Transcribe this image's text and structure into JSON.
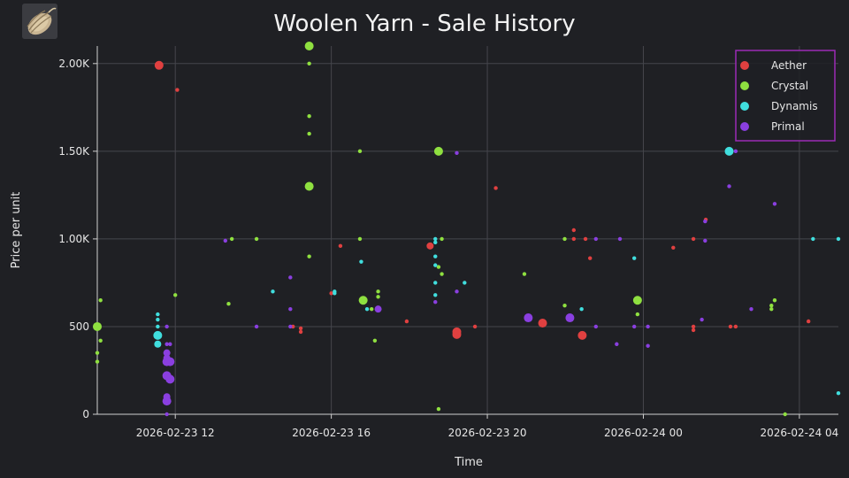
{
  "item": {
    "icon": "yarn-ball-icon"
  },
  "chart_data": {
    "type": "scatter",
    "title": "Woolen Yarn - Sale History",
    "xlabel": "Time",
    "ylabel": "Price per unit",
    "x_type": "datetime",
    "xlim": [
      "2026-02-23 10:00",
      "2026-02-24 05:00"
    ],
    "ylim": [
      0,
      2100
    ],
    "x_ticks": [
      {
        "value": "2026-02-23 12:00",
        "label": "2026-02-23 12"
      },
      {
        "value": "2026-02-23 16:00",
        "label": "2026-02-23 16"
      },
      {
        "value": "2026-02-23 20:00",
        "label": "2026-02-23 20"
      },
      {
        "value": "2026-02-24 00:00",
        "label": "2026-02-24 00"
      },
      {
        "value": "2026-02-24 04:00",
        "label": "2026-02-24 04"
      }
    ],
    "y_ticks": [
      {
        "value": 0,
        "label": "0"
      },
      {
        "value": 500,
        "label": "500"
      },
      {
        "value": 1000,
        "label": "1.00K"
      },
      {
        "value": 1500,
        "label": "1.50K"
      },
      {
        "value": 2000,
        "label": "2.00K"
      }
    ],
    "grid": true,
    "legend_position": "top-right",
    "legend_border_color": "#9b2bb5",
    "background": "#1f2024",
    "marker_size_encodes": "quantity (larger marker = larger sale)",
    "series": [
      {
        "name": "Aether",
        "color": "#e04040",
        "points": [
          {
            "x": "2026-02-23 11:35",
            "y": 1990,
            "size": "l"
          },
          {
            "x": "2026-02-23 12:03",
            "y": 1850,
            "size": "s"
          },
          {
            "x": "2026-02-23 15:01",
            "y": 500,
            "size": "s"
          },
          {
            "x": "2026-02-23 15:13",
            "y": 490,
            "size": "s"
          },
          {
            "x": "2026-02-23 15:13",
            "y": 470,
            "size": "s"
          },
          {
            "x": "2026-02-23 16:00",
            "y": 690,
            "size": "s"
          },
          {
            "x": "2026-02-23 16:14",
            "y": 960,
            "size": "s"
          },
          {
            "x": "2026-02-23 17:56",
            "y": 530,
            "size": "s"
          },
          {
            "x": "2026-02-23 18:32",
            "y": 960,
            "size": "m"
          },
          {
            "x": "2026-02-23 19:13",
            "y": 470,
            "size": "l"
          },
          {
            "x": "2026-02-23 19:13",
            "y": 455,
            "size": "l"
          },
          {
            "x": "2026-02-23 19:41",
            "y": 500,
            "size": "s"
          },
          {
            "x": "2026-02-23 20:13",
            "y": 1290,
            "size": "s"
          },
          {
            "x": "2026-02-23 21:25",
            "y": 520,
            "size": "l"
          },
          {
            "x": "2026-02-23 22:13",
            "y": 1050,
            "size": "s"
          },
          {
            "x": "2026-02-23 22:13",
            "y": 1000,
            "size": "s"
          },
          {
            "x": "2026-02-23 22:26",
            "y": 450,
            "size": "l"
          },
          {
            "x": "2026-02-23 22:31",
            "y": 1000,
            "size": "s"
          },
          {
            "x": "2026-02-23 22:38",
            "y": 890,
            "size": "s"
          },
          {
            "x": "2026-02-24 00:46",
            "y": 950,
            "size": "s"
          },
          {
            "x": "2026-02-24 01:17",
            "y": 500,
            "size": "s"
          },
          {
            "x": "2026-02-24 01:17",
            "y": 480,
            "size": "s"
          },
          {
            "x": "2026-02-24 01:17",
            "y": 1000,
            "size": "s"
          },
          {
            "x": "2026-02-24 01:36",
            "y": 1110,
            "size": "s"
          },
          {
            "x": "2026-02-24 02:14",
            "y": 500,
            "size": "s"
          },
          {
            "x": "2026-02-24 02:22",
            "y": 500,
            "size": "s"
          },
          {
            "x": "2026-02-24 04:14",
            "y": 530,
            "size": "s"
          }
        ]
      },
      {
        "name": "Crystal",
        "color": "#8fe040",
        "points": [
          {
            "x": "2026-02-23 10:00",
            "y": 500,
            "size": "l"
          },
          {
            "x": "2026-02-23 10:00",
            "y": 350,
            "size": "s"
          },
          {
            "x": "2026-02-23 10:00",
            "y": 300,
            "size": "s"
          },
          {
            "x": "2026-02-23 10:05",
            "y": 650,
            "size": "s"
          },
          {
            "x": "2026-02-23 10:05",
            "y": 420,
            "size": "s"
          },
          {
            "x": "2026-02-23 12:00",
            "y": 680,
            "size": "s"
          },
          {
            "x": "2026-02-23 13:22",
            "y": 630,
            "size": "s"
          },
          {
            "x": "2026-02-23 13:27",
            "y": 1000,
            "size": "s"
          },
          {
            "x": "2026-02-23 14:05",
            "y": 1000,
            "size": "s"
          },
          {
            "x": "2026-02-23 15:26",
            "y": 2100,
            "size": "l"
          },
          {
            "x": "2026-02-23 15:26",
            "y": 1300,
            "size": "l"
          },
          {
            "x": "2026-02-23 15:26",
            "y": 2000,
            "size": "s"
          },
          {
            "x": "2026-02-23 15:26",
            "y": 1700,
            "size": "s"
          },
          {
            "x": "2026-02-23 15:26",
            "y": 1600,
            "size": "s"
          },
          {
            "x": "2026-02-23 15:26",
            "y": 900,
            "size": "s"
          },
          {
            "x": "2026-02-23 16:44",
            "y": 1500,
            "size": "s"
          },
          {
            "x": "2026-02-23 16:44",
            "y": 1000,
            "size": "s"
          },
          {
            "x": "2026-02-23 16:49",
            "y": 650,
            "size": "l"
          },
          {
            "x": "2026-02-23 17:02",
            "y": 600,
            "size": "s"
          },
          {
            "x": "2026-02-23 17:07",
            "y": 420,
            "size": "s"
          },
          {
            "x": "2026-02-23 17:12",
            "y": 700,
            "size": "s"
          },
          {
            "x": "2026-02-23 17:12",
            "y": 670,
            "size": "s"
          },
          {
            "x": "2026-02-23 18:45",
            "y": 1500,
            "size": "l"
          },
          {
            "x": "2026-02-23 18:50",
            "y": 1000,
            "size": "s"
          },
          {
            "x": "2026-02-23 18:45",
            "y": 840,
            "size": "s"
          },
          {
            "x": "2026-02-23 18:50",
            "y": 800,
            "size": "s"
          },
          {
            "x": "2026-02-23 18:45",
            "y": 30,
            "size": "s"
          },
          {
            "x": "2026-02-23 20:57",
            "y": 800,
            "size": "s"
          },
          {
            "x": "2026-02-23 21:59",
            "y": 620,
            "size": "s"
          },
          {
            "x": "2026-02-23 21:59",
            "y": 1000,
            "size": "s"
          },
          {
            "x": "2026-02-23 23:51",
            "y": 650,
            "size": "l"
          },
          {
            "x": "2026-02-23 23:51",
            "y": 570,
            "size": "s"
          },
          {
            "x": "2026-02-24 03:17",
            "y": 620,
            "size": "s"
          },
          {
            "x": "2026-02-24 03:17",
            "y": 600,
            "size": "s"
          },
          {
            "x": "2026-02-24 03:22",
            "y": 650,
            "size": "s"
          },
          {
            "x": "2026-02-24 03:38",
            "y": 0,
            "size": "s"
          }
        ]
      },
      {
        "name": "Dynamis",
        "color": "#40dede",
        "points": [
          {
            "x": "2026-02-23 11:33",
            "y": 570,
            "size": "s"
          },
          {
            "x": "2026-02-23 11:33",
            "y": 540,
            "size": "s"
          },
          {
            "x": "2026-02-23 11:33",
            "y": 500,
            "size": "s"
          },
          {
            "x": "2026-02-23 11:33",
            "y": 450,
            "size": "l"
          },
          {
            "x": "2026-02-23 11:33",
            "y": 400,
            "size": "m"
          },
          {
            "x": "2026-02-23 14:30",
            "y": 700,
            "size": "s"
          },
          {
            "x": "2026-02-23 16:05",
            "y": 700,
            "size": "s"
          },
          {
            "x": "2026-02-23 16:05",
            "y": 690,
            "size": "s"
          },
          {
            "x": "2026-02-23 16:46",
            "y": 870,
            "size": "s"
          },
          {
            "x": "2026-02-23 16:55",
            "y": 600,
            "size": "s"
          },
          {
            "x": "2026-02-23 18:40",
            "y": 1000,
            "size": "s"
          },
          {
            "x": "2026-02-23 18:40",
            "y": 980,
            "size": "s"
          },
          {
            "x": "2026-02-23 18:40",
            "y": 900,
            "size": "s"
          },
          {
            "x": "2026-02-23 18:40",
            "y": 850,
            "size": "s"
          },
          {
            "x": "2026-02-23 18:40",
            "y": 750,
            "size": "s"
          },
          {
            "x": "2026-02-23 18:40",
            "y": 680,
            "size": "s"
          },
          {
            "x": "2026-02-23 19:25",
            "y": 750,
            "size": "s"
          },
          {
            "x": "2026-02-23 22:25",
            "y": 600,
            "size": "s"
          },
          {
            "x": "2026-02-23 23:46",
            "y": 890,
            "size": "s"
          },
          {
            "x": "2026-02-24 02:12",
            "y": 1500,
            "size": "l"
          },
          {
            "x": "2026-02-24 04:21",
            "y": 1000,
            "size": "s"
          },
          {
            "x": "2026-02-24 05:00",
            "y": 1000,
            "size": "s"
          },
          {
            "x": "2026-02-24 05:00",
            "y": 120,
            "size": "s"
          }
        ]
      },
      {
        "name": "Primal",
        "color": "#8a3fe0",
        "points": [
          {
            "x": "2026-02-23 11:47",
            "y": 500,
            "size": "s"
          },
          {
            "x": "2026-02-23 11:47",
            "y": 400,
            "size": "s"
          },
          {
            "x": "2026-02-23 11:52",
            "y": 400,
            "size": "s"
          },
          {
            "x": "2026-02-23 11:47",
            "y": 350,
            "size": "m"
          },
          {
            "x": "2026-02-23 11:47",
            "y": 320,
            "size": "m"
          },
          {
            "x": "2026-02-23 11:47",
            "y": 300,
            "size": "l"
          },
          {
            "x": "2026-02-23 11:52",
            "y": 300,
            "size": "l"
          },
          {
            "x": "2026-02-23 11:47",
            "y": 220,
            "size": "l"
          },
          {
            "x": "2026-02-23 11:52",
            "y": 200,
            "size": "l"
          },
          {
            "x": "2026-02-23 11:47",
            "y": 100,
            "size": "m"
          },
          {
            "x": "2026-02-23 11:47",
            "y": 75,
            "size": "l"
          },
          {
            "x": "2026-02-23 11:47",
            "y": 0,
            "size": "s"
          },
          {
            "x": "2026-02-23 13:17",
            "y": 990,
            "size": "s"
          },
          {
            "x": "2026-02-23 14:05",
            "y": 500,
            "size": "s"
          },
          {
            "x": "2026-02-23 14:57",
            "y": 780,
            "size": "s"
          },
          {
            "x": "2026-02-23 14:57",
            "y": 600,
            "size": "s"
          },
          {
            "x": "2026-02-23 14:57",
            "y": 500,
            "size": "s"
          },
          {
            "x": "2026-02-23 17:12",
            "y": 600,
            "size": "m"
          },
          {
            "x": "2026-02-23 18:40",
            "y": 640,
            "size": "s"
          },
          {
            "x": "2026-02-23 19:13",
            "y": 1490,
            "size": "s"
          },
          {
            "x": "2026-02-23 19:13",
            "y": 700,
            "size": "s"
          },
          {
            "x": "2026-02-23 21:03",
            "y": 550,
            "size": "l"
          },
          {
            "x": "2026-02-23 22:07",
            "y": 550,
            "size": "l"
          },
          {
            "x": "2026-02-23 22:47",
            "y": 1000,
            "size": "s"
          },
          {
            "x": "2026-02-23 22:47",
            "y": 500,
            "size": "s"
          },
          {
            "x": "2026-02-23 23:24",
            "y": 1000,
            "size": "s"
          },
          {
            "x": "2026-02-23 23:19",
            "y": 400,
            "size": "s"
          },
          {
            "x": "2026-02-23 23:46",
            "y": 500,
            "size": "s"
          },
          {
            "x": "2026-02-24 00:07",
            "y": 500,
            "size": "s"
          },
          {
            "x": "2026-02-24 00:07",
            "y": 390,
            "size": "s"
          },
          {
            "x": "2026-02-24 01:30",
            "y": 540,
            "size": "s"
          },
          {
            "x": "2026-02-24 01:35",
            "y": 1100,
            "size": "s"
          },
          {
            "x": "2026-02-24 01:35",
            "y": 990,
            "size": "s"
          },
          {
            "x": "2026-02-24 02:12",
            "y": 1300,
            "size": "s"
          },
          {
            "x": "2026-02-24 02:22",
            "y": 1500,
            "size": "s"
          },
          {
            "x": "2026-02-24 02:46",
            "y": 600,
            "size": "s"
          },
          {
            "x": "2026-02-24 03:22",
            "y": 1200,
            "size": "s"
          }
        ]
      }
    ]
  }
}
